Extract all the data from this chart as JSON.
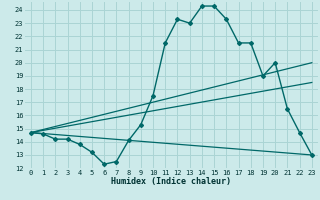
{
  "xlabel": "Humidex (Indice chaleur)",
  "bg_color": "#cceaea",
  "grid_color": "#aad4d4",
  "line_color": "#006868",
  "xlim": [
    -0.5,
    23.5
  ],
  "ylim": [
    12,
    24.6
  ],
  "yticks": [
    12,
    13,
    14,
    15,
    16,
    17,
    18,
    19,
    20,
    21,
    22,
    23,
    24
  ],
  "xticks": [
    0,
    1,
    2,
    3,
    4,
    5,
    6,
    7,
    8,
    9,
    10,
    11,
    12,
    13,
    14,
    15,
    16,
    17,
    18,
    19,
    20,
    21,
    22,
    23
  ],
  "series": [
    {
      "x": [
        0,
        1,
        2,
        3,
        4,
        5,
        6,
        7,
        8,
        9,
        10,
        11,
        12,
        13,
        14,
        15,
        16,
        17,
        18,
        19,
        20,
        21,
        22,
        23
      ],
      "y": [
        14.7,
        14.6,
        14.2,
        14.2,
        13.8,
        13.2,
        12.3,
        12.5,
        14.1,
        15.3,
        17.5,
        21.5,
        23.3,
        23.0,
        24.3,
        24.3,
        23.3,
        21.5,
        21.5,
        19.0,
        20.0,
        16.5,
        14.7,
        13.0
      ],
      "markers": true
    },
    {
      "x": [
        0,
        23
      ],
      "y": [
        14.7,
        20.0
      ],
      "markers": false
    },
    {
      "x": [
        0,
        23
      ],
      "y": [
        14.7,
        18.5
      ],
      "markers": false
    },
    {
      "x": [
        0,
        23
      ],
      "y": [
        14.7,
        13.0
      ],
      "markers": false
    }
  ]
}
